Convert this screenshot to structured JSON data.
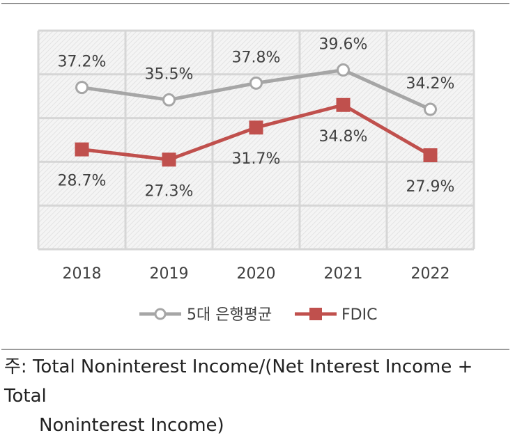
{
  "chart_data": {
    "type": "line",
    "categories": [
      "2018",
      "2019",
      "2020",
      "2021",
      "2022"
    ],
    "ylim": [
      15,
      45
    ],
    "grid": true,
    "legend_placement": "bottom",
    "series": [
      {
        "name": "5대 은행평균",
        "values": [
          37.2,
          35.5,
          37.8,
          39.6,
          34.2
        ],
        "labels": [
          "37.2%",
          "35.5%",
          "37.8%",
          "39.6%",
          "34.2%"
        ],
        "color": "#a6a6a6",
        "marker": "circle"
      },
      {
        "name": "FDIC",
        "values": [
          28.7,
          27.3,
          31.7,
          34.8,
          27.9
        ],
        "labels": [
          "28.7%",
          "27.3%",
          "31.7%",
          "34.8%",
          "27.9%"
        ],
        "color": "#c0504d",
        "marker": "square"
      }
    ]
  },
  "note": {
    "line1": "주: Total Noninterest Income/(Net Interest Income + Total",
    "line2": "Noninterest Income)"
  }
}
